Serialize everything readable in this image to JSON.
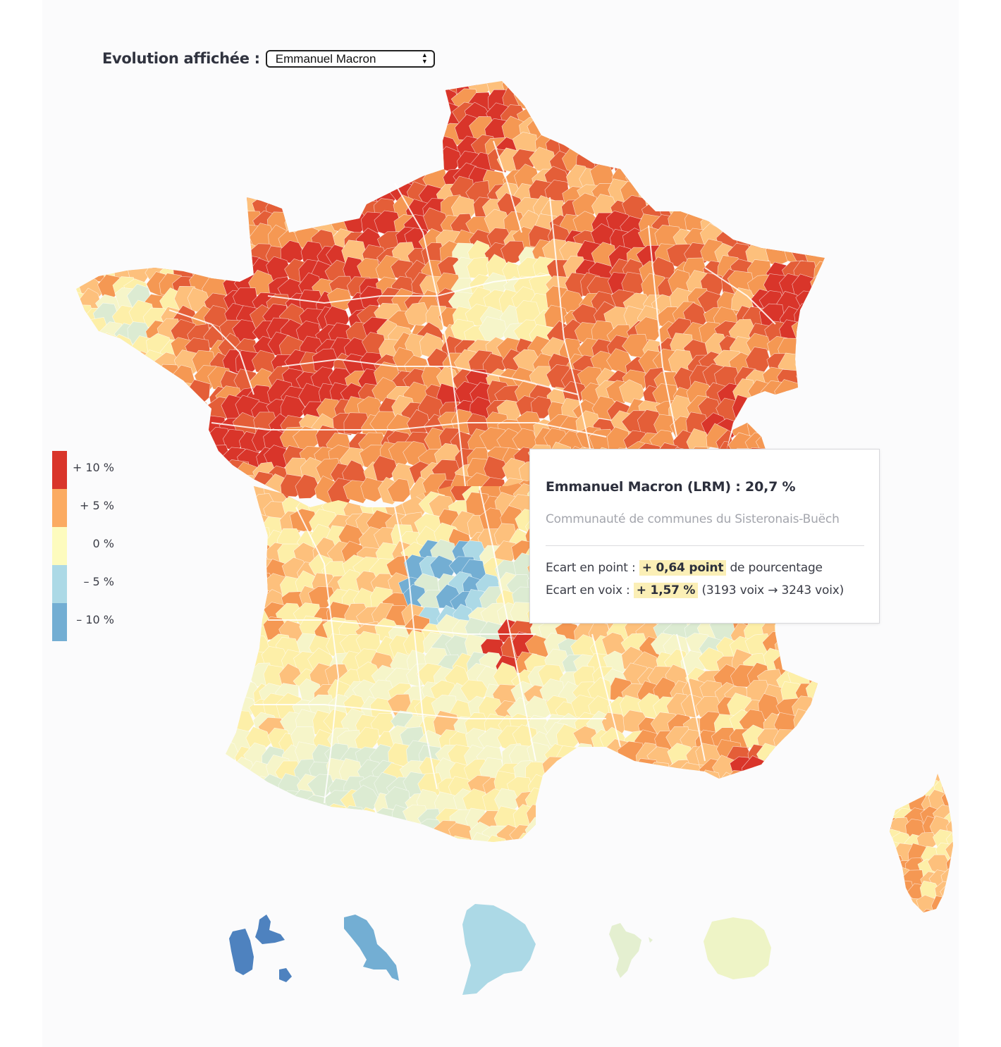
{
  "control": {
    "label": "Evolution affichée :",
    "selected": "Emmanuel Macron"
  },
  "legend": [
    {
      "label": "+ 10 %",
      "color": "#d9352a"
    },
    {
      "label": "+ 5 %",
      "color": "#fbab62"
    },
    {
      "label": "0 %",
      "color": "#fdfbbe"
    },
    {
      "label": "– 5 %",
      "color": "#acd9e6"
    },
    {
      "label": "– 10 %",
      "color": "#73aed3"
    }
  ],
  "tooltip": {
    "title": "Emmanuel Macron (LRM) : 20,7 %",
    "subtitle": "Communauté de communes du Sisteronais-Buëch",
    "point_label": "Ecart en point :",
    "point_value": "+ 0,64 point",
    "point_suffix": "de pourcentage",
    "voix_label": "Ecart en voix :",
    "voix_value": "+ 1,57 %",
    "voix_suffix": "(3193 voix → 3243 voix)"
  },
  "map_colors": {
    "red": "#d9352a",
    "orange_red": "#e45e38",
    "orange": "#f59853",
    "light_orange": "#fdc07c",
    "yellow": "#fdefa8",
    "pale_yellow": "#f6f5c9",
    "light_green": "#dcebd2",
    "light_blue": "#acd9e6",
    "blue": "#73aed3",
    "dark_blue": "#4e82bf",
    "reunion": "#eef4c6",
    "mayotte": "#e4efd0"
  }
}
